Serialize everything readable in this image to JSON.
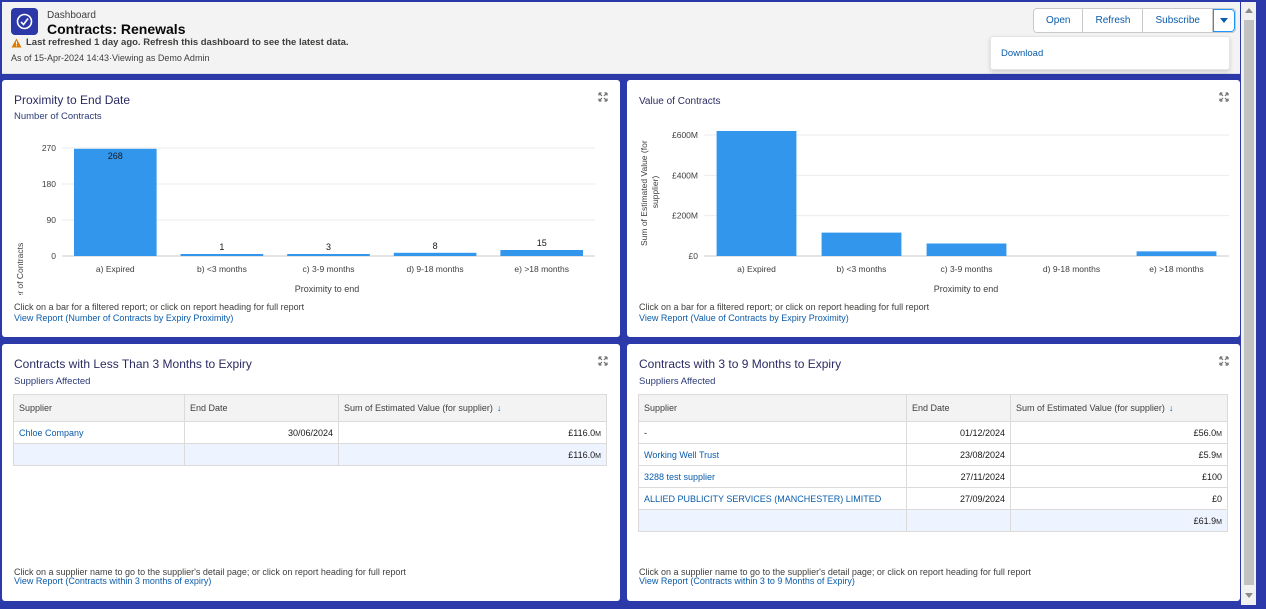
{
  "header": {
    "breadcrumb": "Dashboard",
    "title": "Contracts: Renewals",
    "warning": "Last refreshed 1 day ago. Refresh this dashboard to see the latest data.",
    "as_of": "As of 15-Apr-2024 14:43·Viewing as Demo Admin",
    "buttons": {
      "open": "Open",
      "refresh": "Refresh",
      "subscribe": "Subscribe"
    },
    "menu": {
      "download": "Download"
    }
  },
  "colors": {
    "bar": "#3296ed",
    "brand": "#2c38a8",
    "link": "#0b5cab",
    "warning": "#dd7a01"
  },
  "proximity": {
    "title": "Proximity to End Date",
    "subtitle": "Number of Contracts",
    "note": "Click on a bar for a filtered report; or click on report heading for full report",
    "link": "View Report (Number of Contracts by Expiry Proximity)"
  },
  "value": {
    "title": "Value of Contracts",
    "note": "Click on a bar for a filtered report; or click on report heading for full report",
    "link": "View Report (Value of Contracts by Expiry Proximity)"
  },
  "chart_data": [
    {
      "type": "bar",
      "categories": [
        "a) Expired",
        "b) <3 months",
        "c) 3-9 months",
        "d) 9-18 months",
        "e) >18 months"
      ],
      "values": [
        268,
        1,
        3,
        8,
        15
      ],
      "data_labels": [
        "268",
        "1",
        "3",
        "8",
        "15"
      ],
      "xlabel": "Proximity to end",
      "ylabel": "Number of Contracts",
      "yticks": [
        "0",
        "90",
        "180",
        "270"
      ],
      "ylim": [
        0,
        270
      ],
      "grid": true
    },
    {
      "type": "bar",
      "categories": [
        "a) Expired",
        "b) <3 months",
        "c) 3-9 months",
        "d) 9-18 months",
        "e) >18 months"
      ],
      "values": [
        620,
        116,
        62,
        0,
        23
      ],
      "value_units": "£M",
      "xlabel": "Proximity to end",
      "ylabel": "Sum of Estimated Value (for supplier)",
      "yticks": [
        "£0",
        "£200M",
        "£400M",
        "£600M"
      ],
      "ylim": [
        0,
        600
      ],
      "grid": true
    }
  ],
  "lt3": {
    "title": "Contracts with Less Than 3 Months to Expiry",
    "subtitle": "Suppliers Affected",
    "columns": [
      "Supplier",
      "End Date",
      "Sum of Estimated Value (for supplier)"
    ],
    "rows": [
      {
        "supplier": "Chloe Company",
        "end_date": "30/06/2024",
        "value": "£116.0",
        "unit": "M"
      }
    ],
    "total": {
      "value": "£116.0",
      "unit": "M"
    },
    "note": "Click on a supplier name to go to the supplier's detail page; or click on report heading for full report",
    "link": "View Report (Contracts within 3 months of expiry)"
  },
  "m39": {
    "title": "Contracts with 3 to 9 Months to Expiry",
    "subtitle": "Suppliers Affected",
    "columns": [
      "Supplier",
      "End Date",
      "Sum of Estimated Value (for supplier)"
    ],
    "rows": [
      {
        "supplier": "-",
        "end_date": "01/12/2024",
        "value": "£56.0",
        "unit": "M"
      },
      {
        "supplier": "Working Well Trust",
        "end_date": "23/08/2024",
        "value": "£5.9",
        "unit": "M"
      },
      {
        "supplier": "3288 test supplier",
        "end_date": "27/11/2024",
        "value": "£100",
        "unit": ""
      },
      {
        "supplier": "ALLIED PUBLICITY SERVICES (MANCHESTER) LIMITED",
        "end_date": "27/09/2024",
        "value": "£0",
        "unit": ""
      }
    ],
    "total": {
      "value": "£61.9",
      "unit": "M"
    },
    "note": "Click on a supplier name to go to the supplier's detail page; or click on report heading for full report",
    "link": "View Report (Contracts within 3 to 9 Months of Expiry)"
  }
}
